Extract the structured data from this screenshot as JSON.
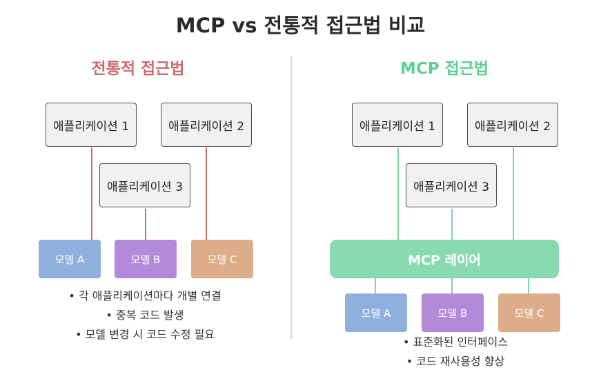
{
  "title": "MCP vs 전통적 접근법 비교",
  "colors": {
    "traditional_accent": "#cc6b6b",
    "mcp_accent": "#5ccf8f",
    "model_a": "#8fb0dc",
    "model_b": "#b38ad9",
    "model_c": "#dcad88",
    "mcp_layer": "#88dbb0"
  },
  "traditional": {
    "title": "전통적 접근법",
    "apps": [
      "애플리케이션 1",
      "애플리케이션 2",
      "애플리케이션 3"
    ],
    "models": [
      "모델 A",
      "모델 B",
      "모델 C"
    ],
    "notes": [
      "• 각 애플리케이션마다 개별 연결",
      "• 중복 코드 발생",
      "• 모델 변경 시 코드 수정 필요"
    ]
  },
  "mcp": {
    "title": "MCP 접근법",
    "apps": [
      "애플리케이션 1",
      "애플리케이션 2",
      "애플리케이션 3"
    ],
    "layer": "MCP 레이어",
    "models": [
      "모델 A",
      "모델 B",
      "모델 C"
    ],
    "notes": [
      "• 표준화된 인터페이스",
      "• 코드 재사용성 향상"
    ]
  }
}
